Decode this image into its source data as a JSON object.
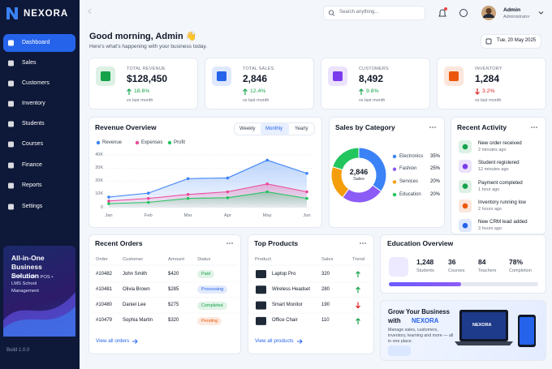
{
  "brand": "NEXORA",
  "nav": [
    "Dashboard",
    "Sales",
    "Customers",
    "Inventory",
    "Students",
    "Courses",
    "Finance",
    "Reports",
    "Settings"
  ],
  "active_nav": 0,
  "promo": {
    "title": "All-in-One Business Solution",
    "subtitle": "ERP • CRM • POS • LMS School Management"
  },
  "build": "Build 1.0.0",
  "search_placeholder": "Search anything...",
  "user": {
    "name": "Admin",
    "role": "Administrator"
  },
  "greeting": "Good morning, Admin 👋",
  "greeting_sub": "Here's what's happening with your business today.",
  "date": "Tue, 20 May 2025",
  "kpis": [
    {
      "label": "TOTAL REVENUE",
      "value": "$128,450",
      "change": "18.6%",
      "note": "vs last month",
      "trend": "up",
      "color": "#16a34a"
    },
    {
      "label": "TOTAL SALES",
      "value": "2,846",
      "change": "12.4%",
      "note": "vs last month",
      "trend": "up",
      "color": "#2563eb"
    },
    {
      "label": "CUSTOMERS",
      "value": "8,492",
      "change": "9.8%",
      "note": "vs last month",
      "trend": "up",
      "color": "#7c3aed"
    },
    {
      "label": "INVENTORY",
      "value": "1,284",
      "change": "3.2%",
      "note": "vs last month",
      "trend": "down",
      "color": "#ea580c"
    }
  ],
  "revenue_overview": {
    "type": "line",
    "title": "Revenue Overview",
    "tabs": [
      "Weekly",
      "Monthly",
      "Yearly"
    ],
    "active_tab": 1,
    "categories": [
      "Jan",
      "Feb",
      "Mar",
      "Apr",
      "May",
      "Jun"
    ],
    "series": [
      {
        "name": "Revenue",
        "color": "#3b82f6",
        "values": [
          8000,
          11000,
          22000,
          22500,
          36000,
          26000
        ]
      },
      {
        "name": "Expenses",
        "color": "#ec4899",
        "values": [
          5000,
          7000,
          10000,
          12000,
          18000,
          12000
        ]
      },
      {
        "name": "Profit",
        "color": "#22c55e",
        "values": [
          3000,
          4000,
          7000,
          7500,
          12000,
          7000
        ]
      }
    ],
    "ylim": [
      0,
      40000
    ],
    "yticks": [
      0,
      {
        "value": 10000,
        "label": "10K"
      },
      {
        "value": 20000,
        "label": "20K"
      },
      {
        "value": 30000,
        "label": "30K"
      },
      {
        "value": 40000,
        "label": "40K"
      }
    ],
    "grid": true
  },
  "sales_by_category": {
    "type": "pie",
    "title": "Sales by Category",
    "total": "2,846",
    "total_label": "Sales",
    "categories": [
      "Electronics",
      "Fashion",
      "Services",
      "Education"
    ],
    "values": [
      35,
      25,
      20,
      20
    ],
    "value_labels": [
      "35%",
      "25%",
      "20%",
      "20%"
    ],
    "colors": [
      "#3b82f6",
      "#8b5cf6",
      "#f59e0b",
      "#22c55e"
    ]
  },
  "recent_activity": {
    "title": "Recent Activity",
    "items": [
      {
        "text": "New order received",
        "time": "2 minutes ago",
        "color": "#16a34a"
      },
      {
        "text": "Student registered",
        "time": "12 minutes ago",
        "color": "#7c3aed"
      },
      {
        "text": "Payment completed",
        "time": "1 hour ago",
        "color": "#16a34a"
      },
      {
        "text": "Inventory running low",
        "time": "2 hours ago",
        "color": "#ea580c"
      },
      {
        "text": "New CRM lead added",
        "time": "3 hours ago",
        "color": "#2563eb"
      }
    ]
  },
  "recent_orders": {
    "title": "Recent Orders",
    "columns": [
      "Order",
      "Customer",
      "Amount",
      "Status"
    ],
    "rows": [
      [
        "#10482",
        "John Smith",
        "$420",
        "Paid"
      ],
      [
        "#10481",
        "Olivia Brown",
        "$285",
        "Processing"
      ],
      [
        "#10480",
        "Daniel Lee",
        "$275",
        "Completed"
      ],
      [
        "#10479",
        "Sophia Martin",
        "$320",
        "Pending"
      ]
    ],
    "status_colors": [
      "#16a34a",
      "#2563eb",
      "#16a34a",
      "#ea580c"
    ],
    "link": "View all orders"
  },
  "top_products": {
    "title": "Top Products",
    "columns": [
      "Product",
      "Sales",
      "Trend"
    ],
    "rows": [
      [
        "Laptop Pro",
        "320"
      ],
      [
        "Wireless Headset",
        "280"
      ],
      [
        "Smart Monitor",
        "190"
      ],
      [
        "Office Chair",
        "110"
      ]
    ],
    "trends": [
      "up",
      "up",
      "down",
      "up"
    ],
    "link": "View all products"
  },
  "education": {
    "title": "Education Overview",
    "stats": [
      {
        "value": "1,248",
        "label": "Students"
      },
      {
        "value": "36",
        "label": "Courses"
      },
      {
        "value": "84",
        "label": "Teachers"
      },
      {
        "value": "78%",
        "label": "Completion"
      }
    ]
  },
  "grow": {
    "title": "Grow Your Business",
    "title2": "with",
    "text": "Manage sales, customers, inventory, learning and more — all in one place."
  }
}
